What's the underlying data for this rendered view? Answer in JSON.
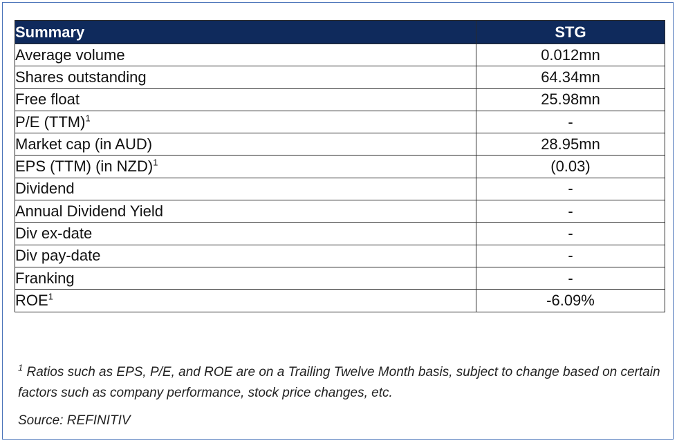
{
  "table": {
    "header": {
      "label": "Summary",
      "value": "STG"
    },
    "rows": [
      {
        "label": "Average volume",
        "sup": "",
        "value": "0.012mn"
      },
      {
        "label": "Shares outstanding",
        "sup": "",
        "value": "64.34mn"
      },
      {
        "label": "Free float",
        "sup": "",
        "value": "25.98mn"
      },
      {
        "label": "P/E (TTM)",
        "sup": "1",
        "value": "-"
      },
      {
        "label": "Market cap (in AUD)",
        "sup": "",
        "value": "28.95mn"
      },
      {
        "label": "EPS (TTM) (in NZD)",
        "sup": "1",
        "value": "(0.03)"
      },
      {
        "label": "Dividend",
        "sup": "",
        "value": "-"
      },
      {
        "label": "Annual Dividend Yield",
        "sup": "",
        "value": "-"
      },
      {
        "label": "Div ex-date",
        "sup": "",
        "value": "-"
      },
      {
        "label": "Div pay-date",
        "sup": "",
        "value": "-"
      },
      {
        "label": "Franking",
        "sup": "",
        "value": "-"
      },
      {
        "label": "ROE",
        "sup": "1",
        "value": "-6.09%"
      }
    ]
  },
  "footnote": {
    "marker": "1",
    "text": "Ratios such as EPS, P/E, and ROE are on a Trailing Twelve Month basis, subject to change based on certain factors such as company performance, stock price changes, etc."
  },
  "source": "Source: REFINITIV",
  "colors": {
    "header_bg": "#0f2a5c",
    "header_text": "#ffffff",
    "frame_border": "#4a74b9"
  }
}
